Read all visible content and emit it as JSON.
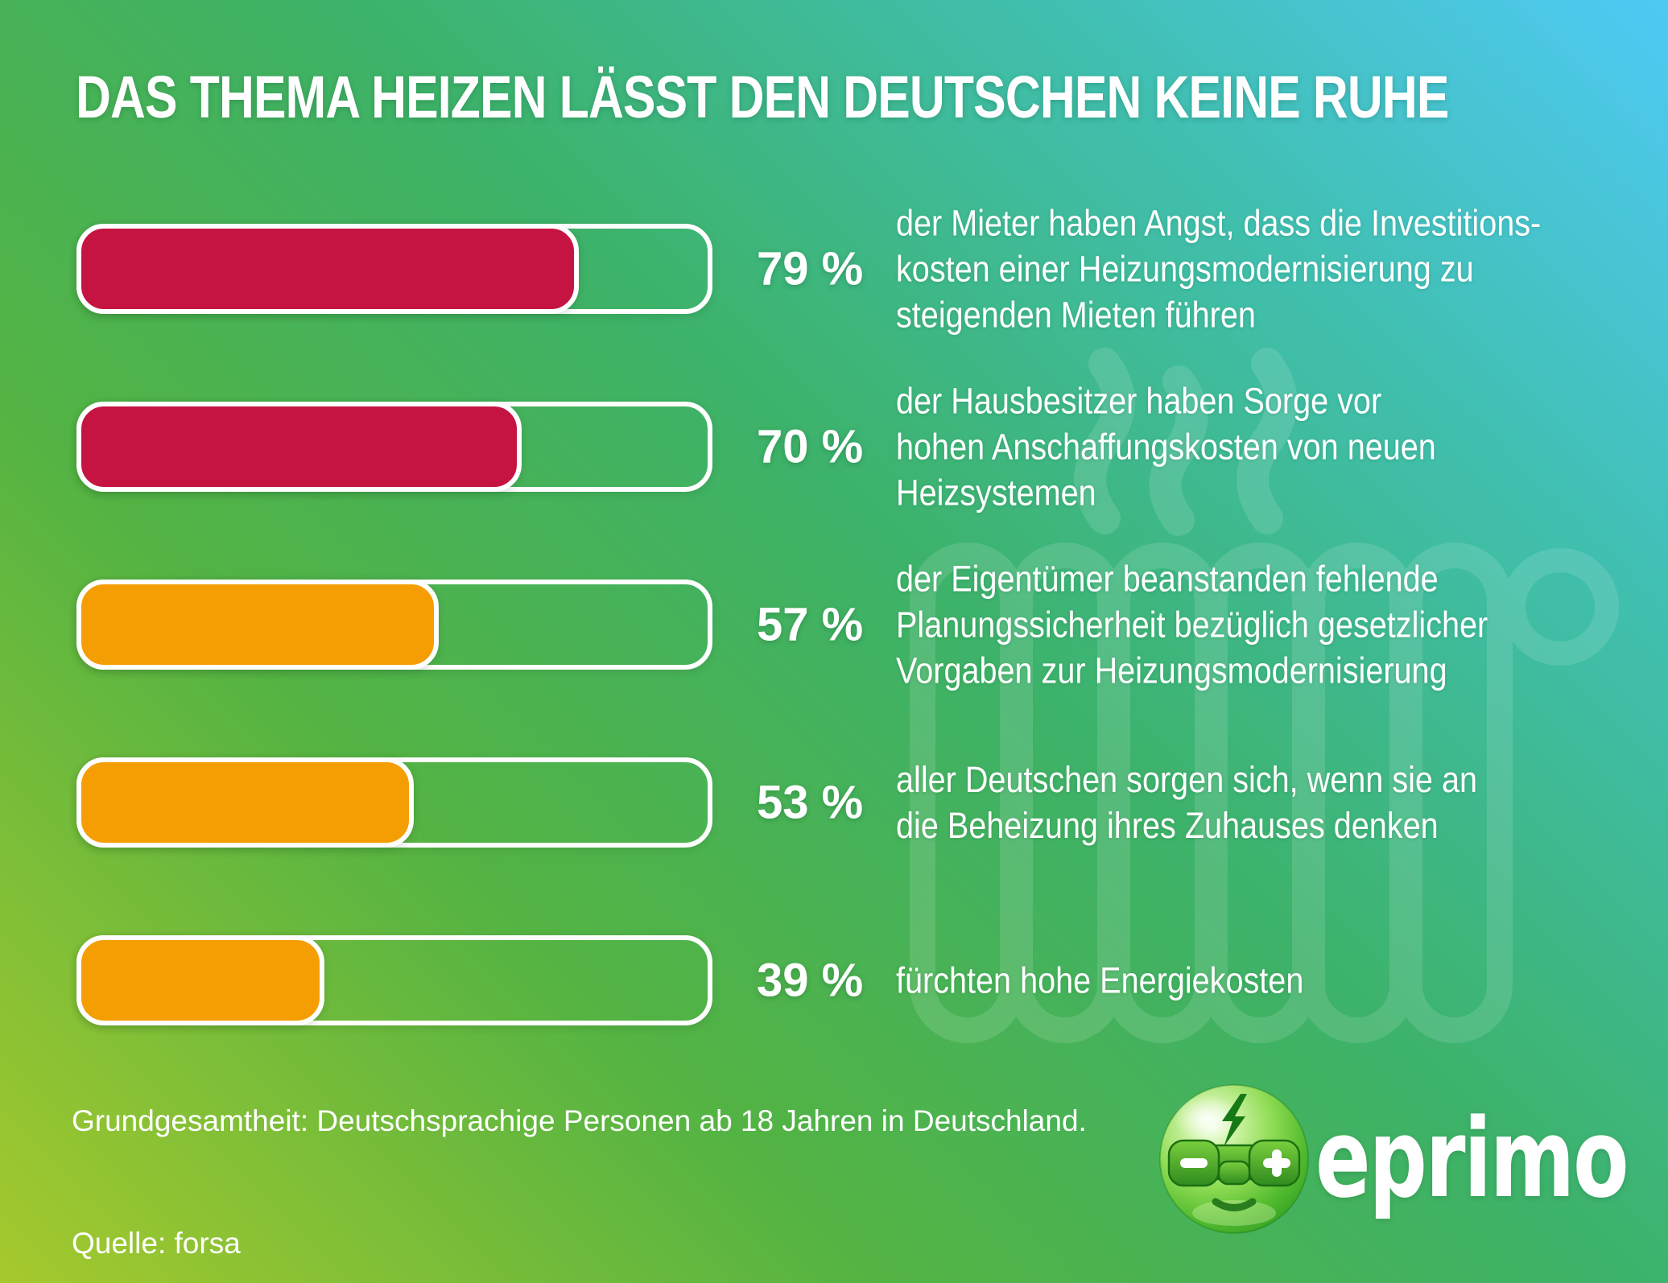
{
  "title": "DAS THEMA HEIZEN LÄSST DEN DEUTSCHEN KEINE RUHE",
  "chart_data": {
    "type": "bar",
    "orientation": "horizontal",
    "unit": "%",
    "xlim": [
      0,
      100
    ],
    "grid": false,
    "legend": "none",
    "title": "DAS THEMA HEIZEN LÄSST DEN DEUTSCHEN KEINE RUHE",
    "bar_colors": {
      "high_concern": "#c51441",
      "medium_concern": "#f59e04"
    },
    "bars": [
      {
        "value": 79,
        "label": "79 %",
        "color": "#c51441",
        "description": "der Mieter haben Angst, dass die Investitions-\nkosten einer Heizungsmodernisierung zu\nsteigenden Mieten führen"
      },
      {
        "value": 70,
        "label": "70 %",
        "color": "#c51441",
        "description": "der Hausbesitzer haben Sorge vor\nhohen Anschaffungskosten von neuen\nHeizsystemen"
      },
      {
        "value": 57,
        "label": "57 %",
        "color": "#f59e04",
        "description": "der Eigentümer beanstanden fehlende\nPlanungssicherheit bezüglich gesetzlicher\nVorgaben zur Heizungsmodernisierung"
      },
      {
        "value": 53,
        "label": "53 %",
        "color": "#f59e04",
        "description": "aller Deutschen sorgen sich, wenn sie an\ndie Beheizung ihres Zuhauses denken"
      },
      {
        "value": 39,
        "label": "39 %",
        "color": "#f59e04",
        "description": "fürchten hohe Energiekosten"
      }
    ]
  },
  "footer": {
    "population": "Grundgesamtheit: Deutschsprachige Personen ab 18 Jahren in Deutschland.",
    "source": "Quelle: forsa"
  },
  "brand": {
    "name": "eprimo",
    "mascot": "eprimo-sphere-mascot"
  },
  "colors": {
    "background_top_right": "#4fc9f5",
    "background_middle": "#3db269",
    "background_bottom_left": "#a6c92d",
    "bar_red": "#c51441",
    "bar_orange": "#f59e04",
    "text": "#ffffff"
  }
}
